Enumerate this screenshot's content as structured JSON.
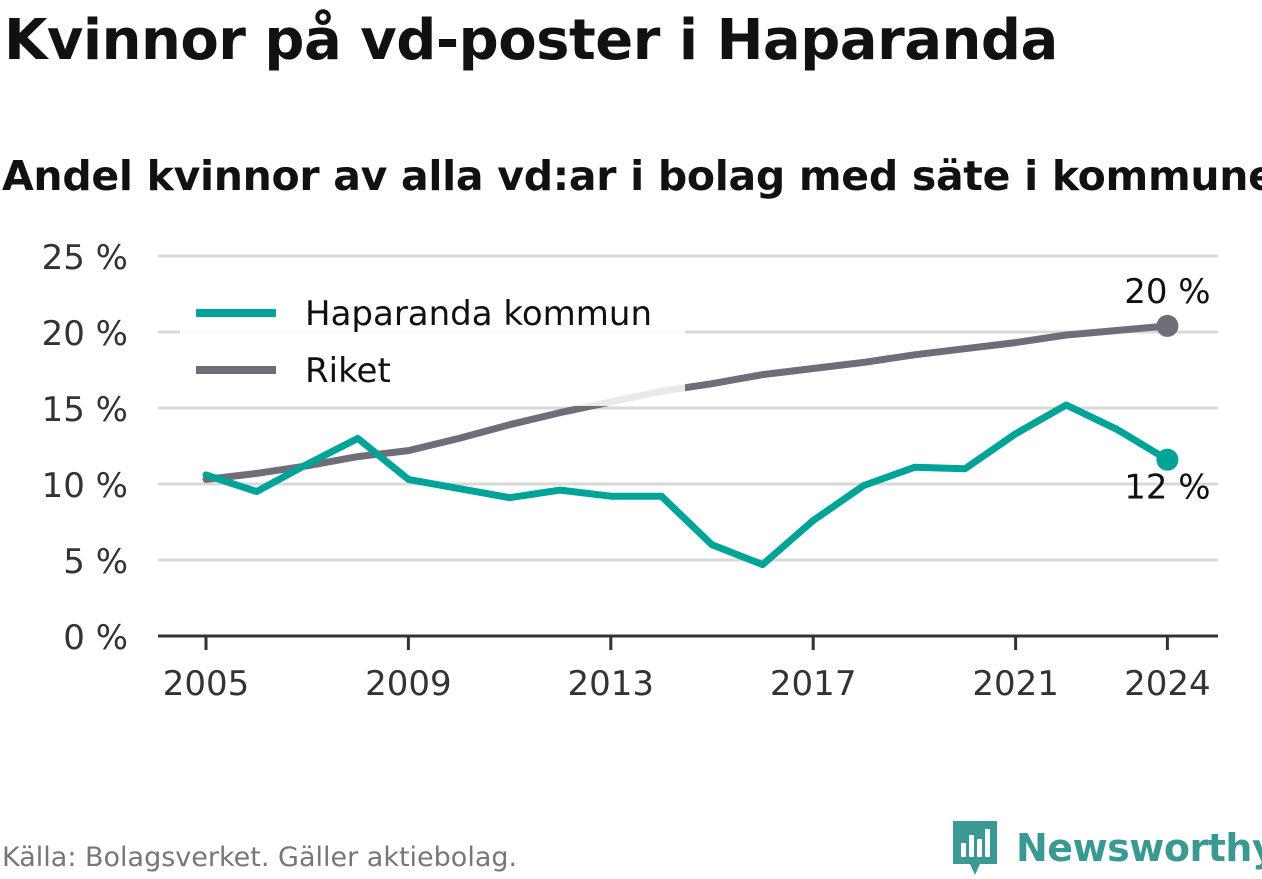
{
  "header": {
    "title": "Kvinnor på vd-poster i Haparanda",
    "subtitle": "Andel kvinnor av alla vd:ar i bolag med säte i kommunen"
  },
  "footer": {
    "source": "Källa: Bolagsverket. Gäller aktiebolag.",
    "brand": "Newsworthy"
  },
  "colors": {
    "haparanda": "#00a397",
    "riket": "#6f6e78",
    "grid": "#d9d9d9",
    "axis": "#333333",
    "brand": "#3a9a93"
  },
  "icons": {
    "brand_logo": "newsworthy-logo-icon"
  },
  "chart_data": {
    "type": "line",
    "x": [
      2005,
      2006,
      2007,
      2008,
      2009,
      2010,
      2011,
      2012,
      2013,
      2014,
      2015,
      2016,
      2017,
      2018,
      2019,
      2020,
      2021,
      2022,
      2023,
      2024
    ],
    "series": [
      {
        "name": "Haparanda kommun",
        "color": "#00a397",
        "values": [
          10.6,
          9.5,
          11.3,
          13.0,
          10.3,
          9.7,
          9.1,
          9.6,
          9.2,
          9.2,
          6.0,
          4.7,
          7.6,
          9.9,
          11.1,
          11.0,
          13.3,
          15.2,
          13.6,
          11.6
        ],
        "end_label": "12 %"
      },
      {
        "name": "Riket",
        "color": "#6f6e78",
        "values": [
          10.3,
          10.7,
          11.2,
          11.8,
          12.2,
          13.0,
          13.9,
          14.7,
          15.4,
          16.1,
          16.6,
          17.2,
          17.6,
          18.0,
          18.5,
          18.9,
          19.3,
          19.8,
          20.1,
          20.4
        ],
        "end_label": "20 %"
      }
    ],
    "x_ticks": [
      "2005",
      "2009",
      "2013",
      "2017",
      "2021",
      "2024"
    ],
    "y_ticks": [
      "0 %",
      "5 %",
      "10 %",
      "15 %",
      "20 %",
      "25 %"
    ],
    "ylim": [
      0,
      25
    ],
    "xlim": [
      2004,
      2025
    ],
    "grid": true,
    "legend_position": "top-left"
  }
}
